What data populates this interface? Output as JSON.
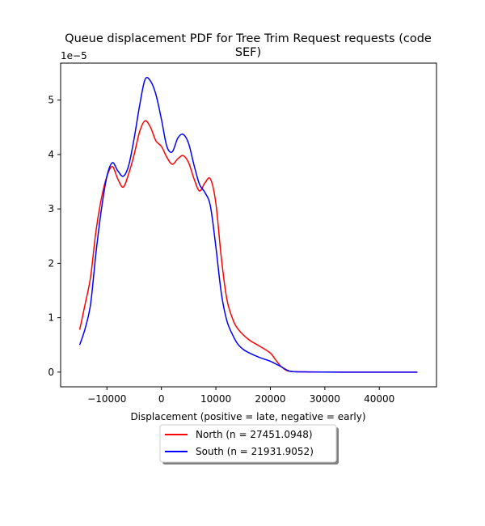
{
  "chart_data": {
    "type": "line",
    "title_line1": "Queue displacement PDF for Tree Trim Request  requests (code",
    "title_line2": "SEF)",
    "xlabel": "Displacement (positive = late, negative = early)",
    "ylabel": "",
    "y_scale_label": "1e−5",
    "xlim": [
      -18500,
      50500
    ],
    "ylim": [
      -0.27,
      5.68
    ],
    "x_ticks": [
      -10000,
      0,
      10000,
      20000,
      30000,
      40000
    ],
    "x_tick_labels": [
      "−10000",
      "0",
      "10000",
      "20000",
      "30000",
      "40000"
    ],
    "y_ticks": [
      0,
      1,
      2,
      3,
      4,
      5
    ],
    "y_tick_labels": [
      "0",
      "1",
      "2",
      "3",
      "4",
      "5"
    ],
    "legend_position": "below",
    "series": [
      {
        "name": "North (n = 27451.0948)",
        "color": "#ff0000",
        "x": [
          -15000,
          -14000,
          -13000,
          -12000,
          -11000,
          -10000,
          -9000,
          -8000,
          -7000,
          -6000,
          -5000,
          -4000,
          -3000,
          -2000,
          -1000,
          0,
          1000,
          2000,
          3000,
          4000,
          5000,
          6000,
          7000,
          8000,
          9000,
          10000,
          11000,
          12000,
          13000,
          14000,
          16000,
          18000,
          20000,
          21000,
          22000,
          23000,
          24000,
          26000,
          30000,
          35000,
          40000,
          47000
        ],
        "values": [
          0.78,
          1.25,
          1.75,
          2.6,
          3.2,
          3.6,
          3.78,
          3.55,
          3.4,
          3.65,
          4.0,
          4.42,
          4.62,
          4.5,
          4.25,
          4.15,
          3.95,
          3.82,
          3.92,
          3.98,
          3.85,
          3.55,
          3.33,
          3.48,
          3.55,
          3.1,
          2.1,
          1.35,
          1.0,
          0.8,
          0.6,
          0.48,
          0.35,
          0.22,
          0.1,
          0.03,
          0.01,
          0.005,
          0.001,
          0.0,
          0.0,
          0.0
        ]
      },
      {
        "name": "South (n = 21931.9052)",
        "color": "#0000ff",
        "x": [
          -15000,
          -14000,
          -13000,
          -12000,
          -11000,
          -10000,
          -9000,
          -8000,
          -7000,
          -6000,
          -5000,
          -4000,
          -3000,
          -2000,
          -1000,
          0,
          1000,
          2000,
          3000,
          4000,
          5000,
          6000,
          7000,
          8000,
          9000,
          10000,
          11000,
          12000,
          13000,
          14000,
          15000,
          16000,
          18000,
          20000,
          21000,
          22000,
          23000,
          24000,
          26000,
          30000,
          35000,
          40000,
          47000
        ],
        "values": [
          0.5,
          0.8,
          1.25,
          2.2,
          3.0,
          3.6,
          3.85,
          3.7,
          3.6,
          3.8,
          4.3,
          4.9,
          5.38,
          5.35,
          5.1,
          4.65,
          4.15,
          4.05,
          4.3,
          4.37,
          4.2,
          3.8,
          3.45,
          3.3,
          3.05,
          2.3,
          1.45,
          0.95,
          0.7,
          0.52,
          0.42,
          0.36,
          0.27,
          0.2,
          0.15,
          0.1,
          0.04,
          0.01,
          0.005,
          0.001,
          0.0,
          0.0,
          0.0
        ]
      }
    ]
  }
}
